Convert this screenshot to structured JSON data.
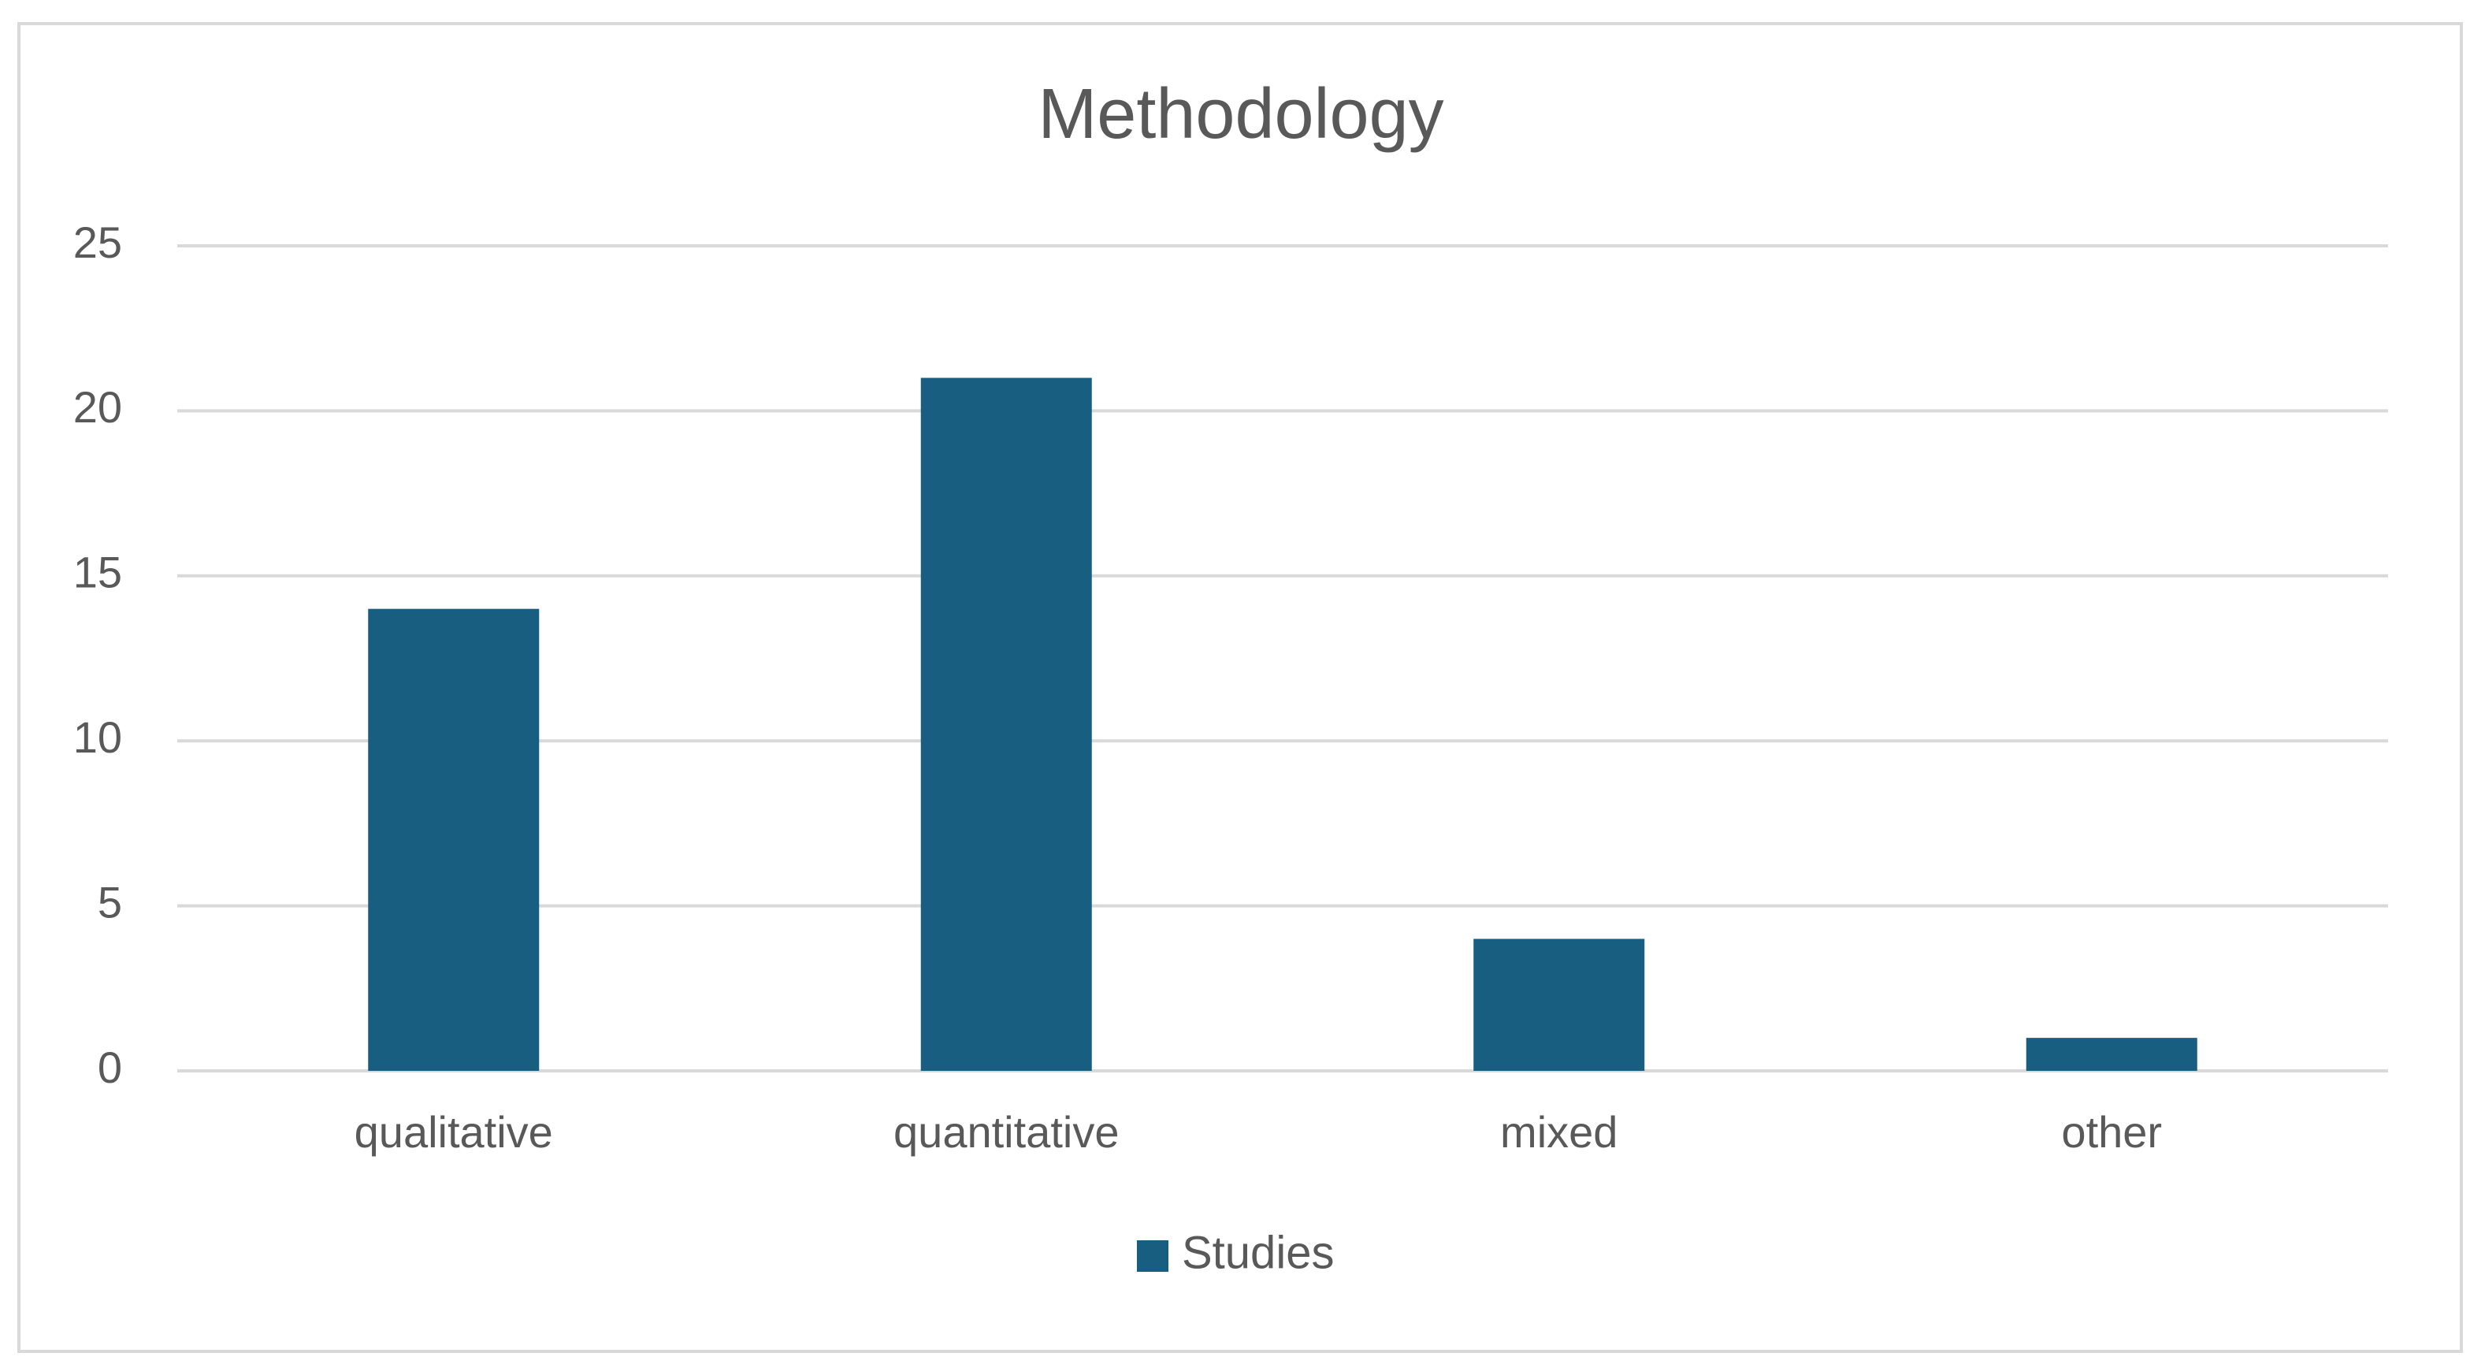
{
  "chart_data": {
    "type": "bar",
    "title": "Methodology",
    "categories": [
      "qualitative",
      "quantitative",
      "mixed",
      "other"
    ],
    "series": [
      {
        "name": "Studies",
        "color": "#175e80",
        "values": [
          14,
          21,
          4,
          1
        ]
      }
    ],
    "ylim": [
      0,
      25
    ],
    "yticks": [
      0,
      5,
      10,
      15,
      20,
      25
    ],
    "grid": true,
    "legend": "bottom"
  }
}
